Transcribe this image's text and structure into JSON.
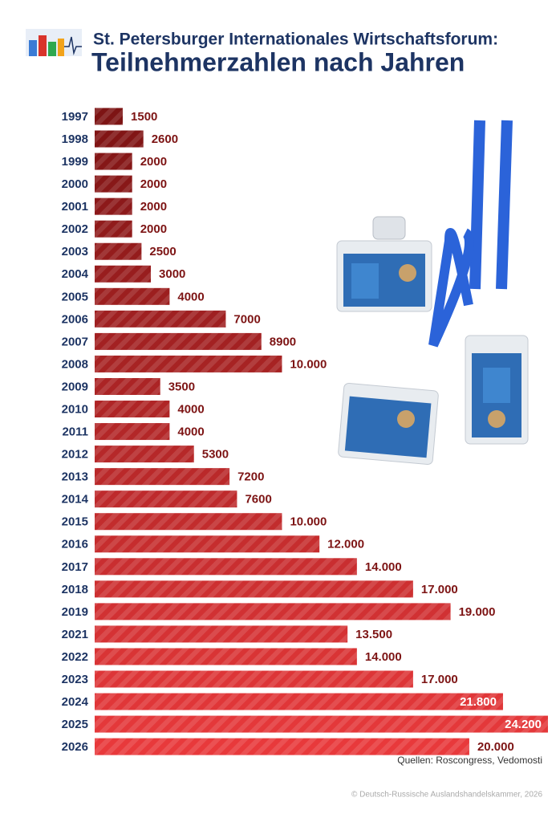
{
  "chart_data": {
    "type": "bar",
    "orientation": "horizontal",
    "title": "St. Petersburger Internationales Wirtschaftsforum:",
    "subtitle": "Teilnehmerzahlen nach Jahren",
    "categories": [
      "1997",
      "1998",
      "1999",
      "2000",
      "2001",
      "2002",
      "2003",
      "2004",
      "2005",
      "2006",
      "2007",
      "2008",
      "2009",
      "2010",
      "2011",
      "2012",
      "2013",
      "2014",
      "2015",
      "2016",
      "2017",
      "2018",
      "2019",
      "2021",
      "2022",
      "2023",
      "2024",
      "2025",
      "2026"
    ],
    "values": [
      1500,
      2600,
      2000,
      2000,
      2000,
      2000,
      2500,
      3000,
      4000,
      7000,
      8900,
      10000,
      3500,
      4000,
      4000,
      5300,
      7200,
      7600,
      10000,
      12000,
      14000,
      17000,
      19000,
      13500,
      14000,
      17000,
      21800,
      24200,
      20000
    ],
    "value_labels": [
      "1500",
      "2600",
      "2000",
      "2000",
      "2000",
      "2000",
      "2500",
      "3000",
      "4000",
      "7000",
      "8900",
      "10.000",
      "3500",
      "4000",
      "4000",
      "5300",
      "7200",
      "7600",
      "10.000",
      "12.000",
      "14.000",
      "17.000",
      "19.000",
      "13.500",
      "14.000",
      "17.000",
      "21.800",
      "24.200",
      "20.000"
    ],
    "color_start": "#7d1414",
    "color_end": "#e8393b",
    "source": "Quellen: Roscongress, Vedomosti",
    "copyright": "© Deutsch-Russische Auslandshandelskammer, 2026"
  }
}
